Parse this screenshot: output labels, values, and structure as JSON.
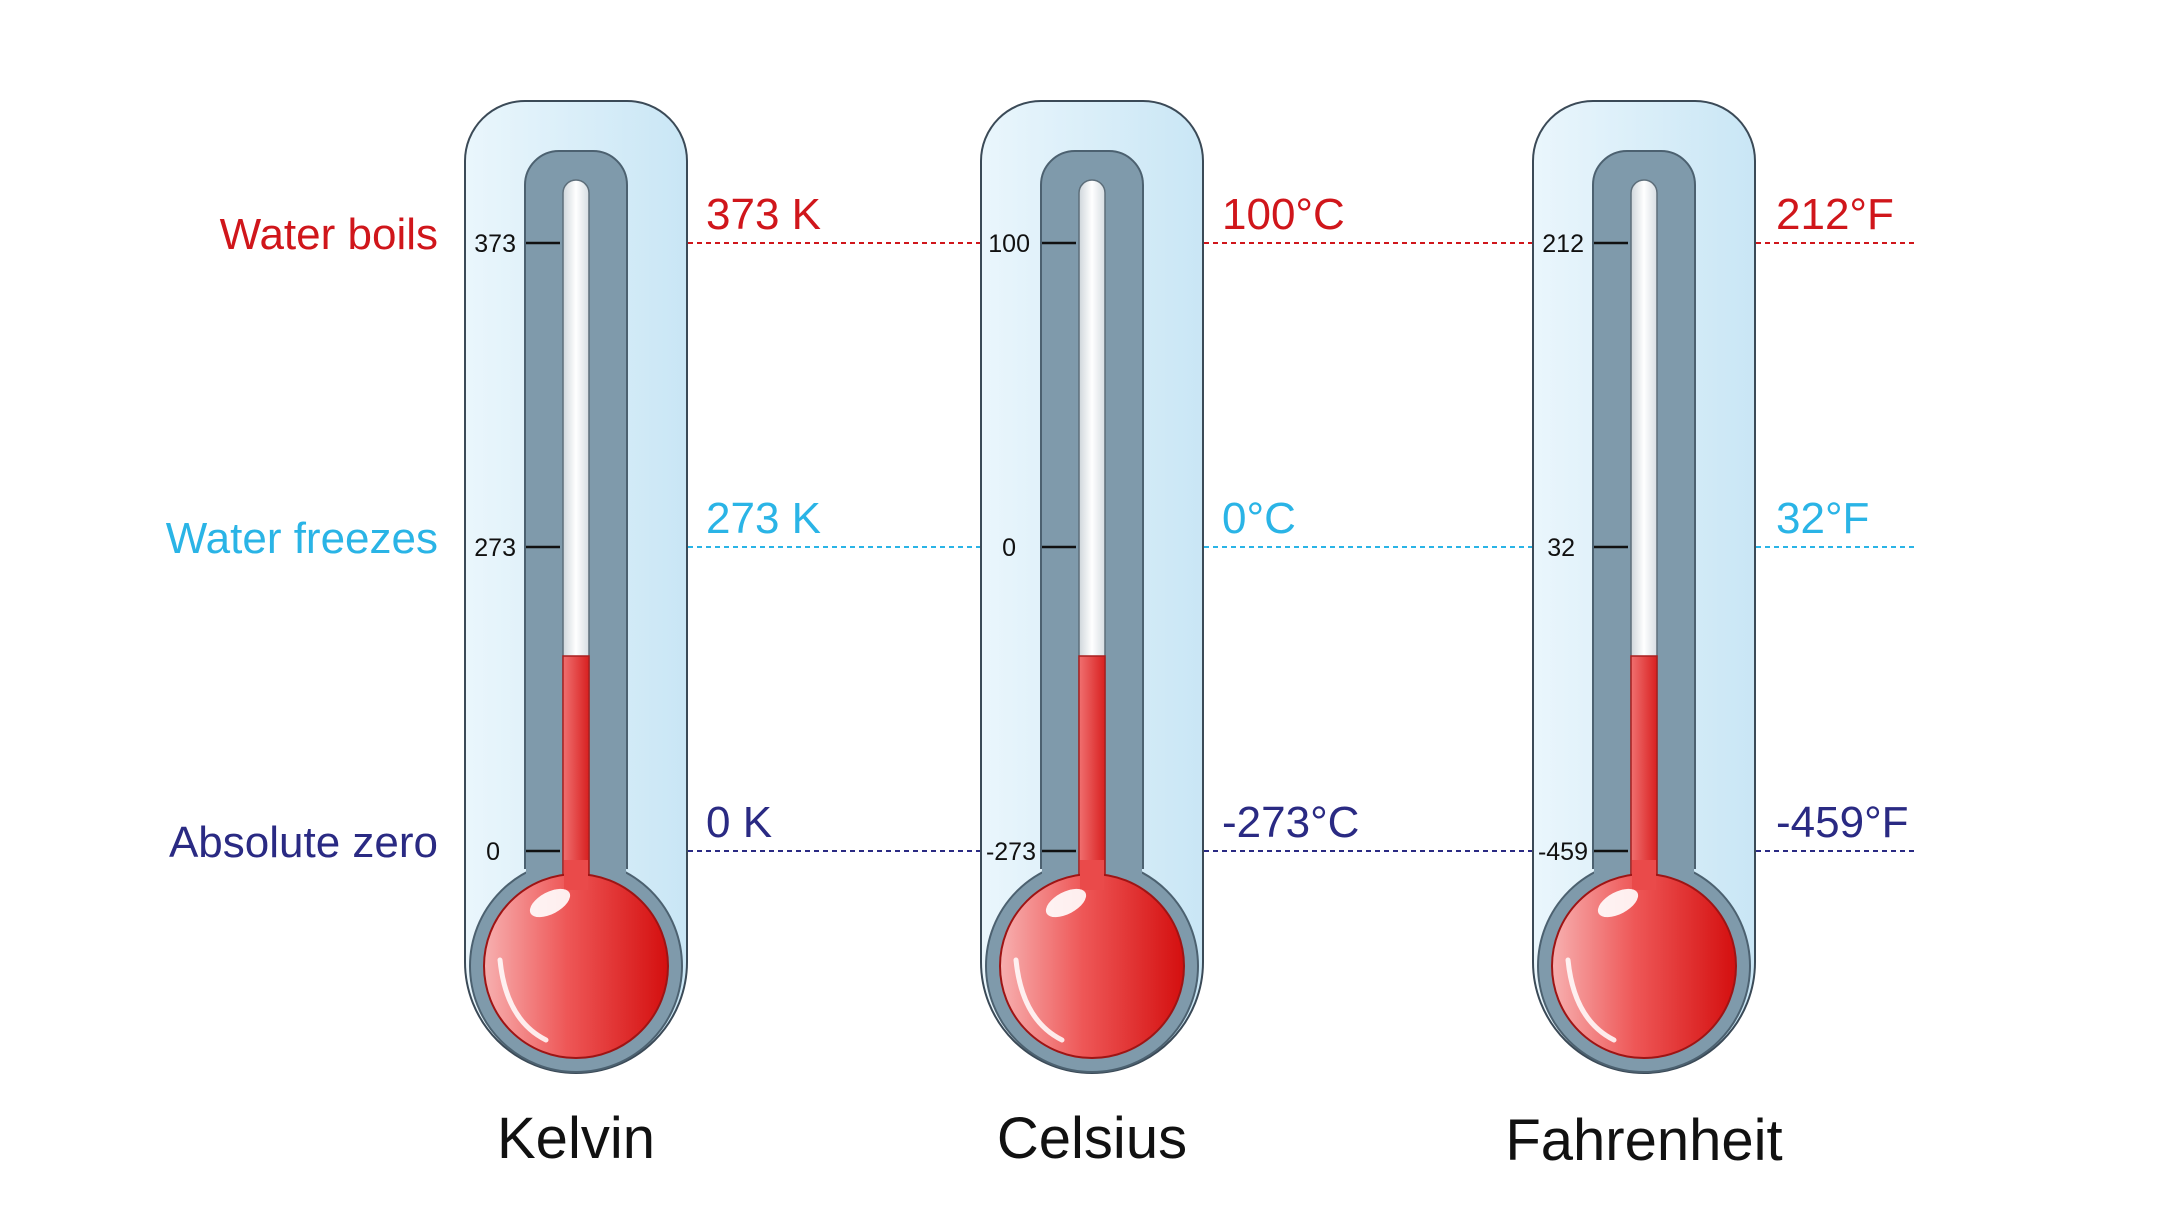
{
  "colors": {
    "boils": "#d0161b",
    "freezes": "#2ab4e6",
    "zero": "#2a2a83",
    "outer_glass": "#d3ecf8",
    "outer_stroke": "#3b4a57",
    "tube_body": "#7f9aab",
    "capillary": "#eaeef1",
    "mercury": "#e53b3b",
    "bulb_dark": "#d81414",
    "bulb_light": "#f6a3a3"
  },
  "rows": [
    {
      "key": "boils",
      "label": "Water boils"
    },
    {
      "key": "freezes",
      "label": "Water freezes"
    },
    {
      "key": "zero",
      "label": "Absolute zero"
    }
  ],
  "thermometers": [
    {
      "name": "Kelvin",
      "ticks": [
        "373",
        "273",
        "0"
      ],
      "values": [
        "373 K",
        "273 K",
        "0 K"
      ]
    },
    {
      "name": "Celsius",
      "ticks": [
        "100",
        "0",
        "-273"
      ],
      "values": [
        "100°C",
        "0°C",
        "-273°C"
      ]
    },
    {
      "name": "Fahrenheit",
      "ticks": [
        "212",
        "32",
        "-459"
      ],
      "values": [
        "212°F",
        "32°F",
        "-459°F"
      ]
    }
  ]
}
